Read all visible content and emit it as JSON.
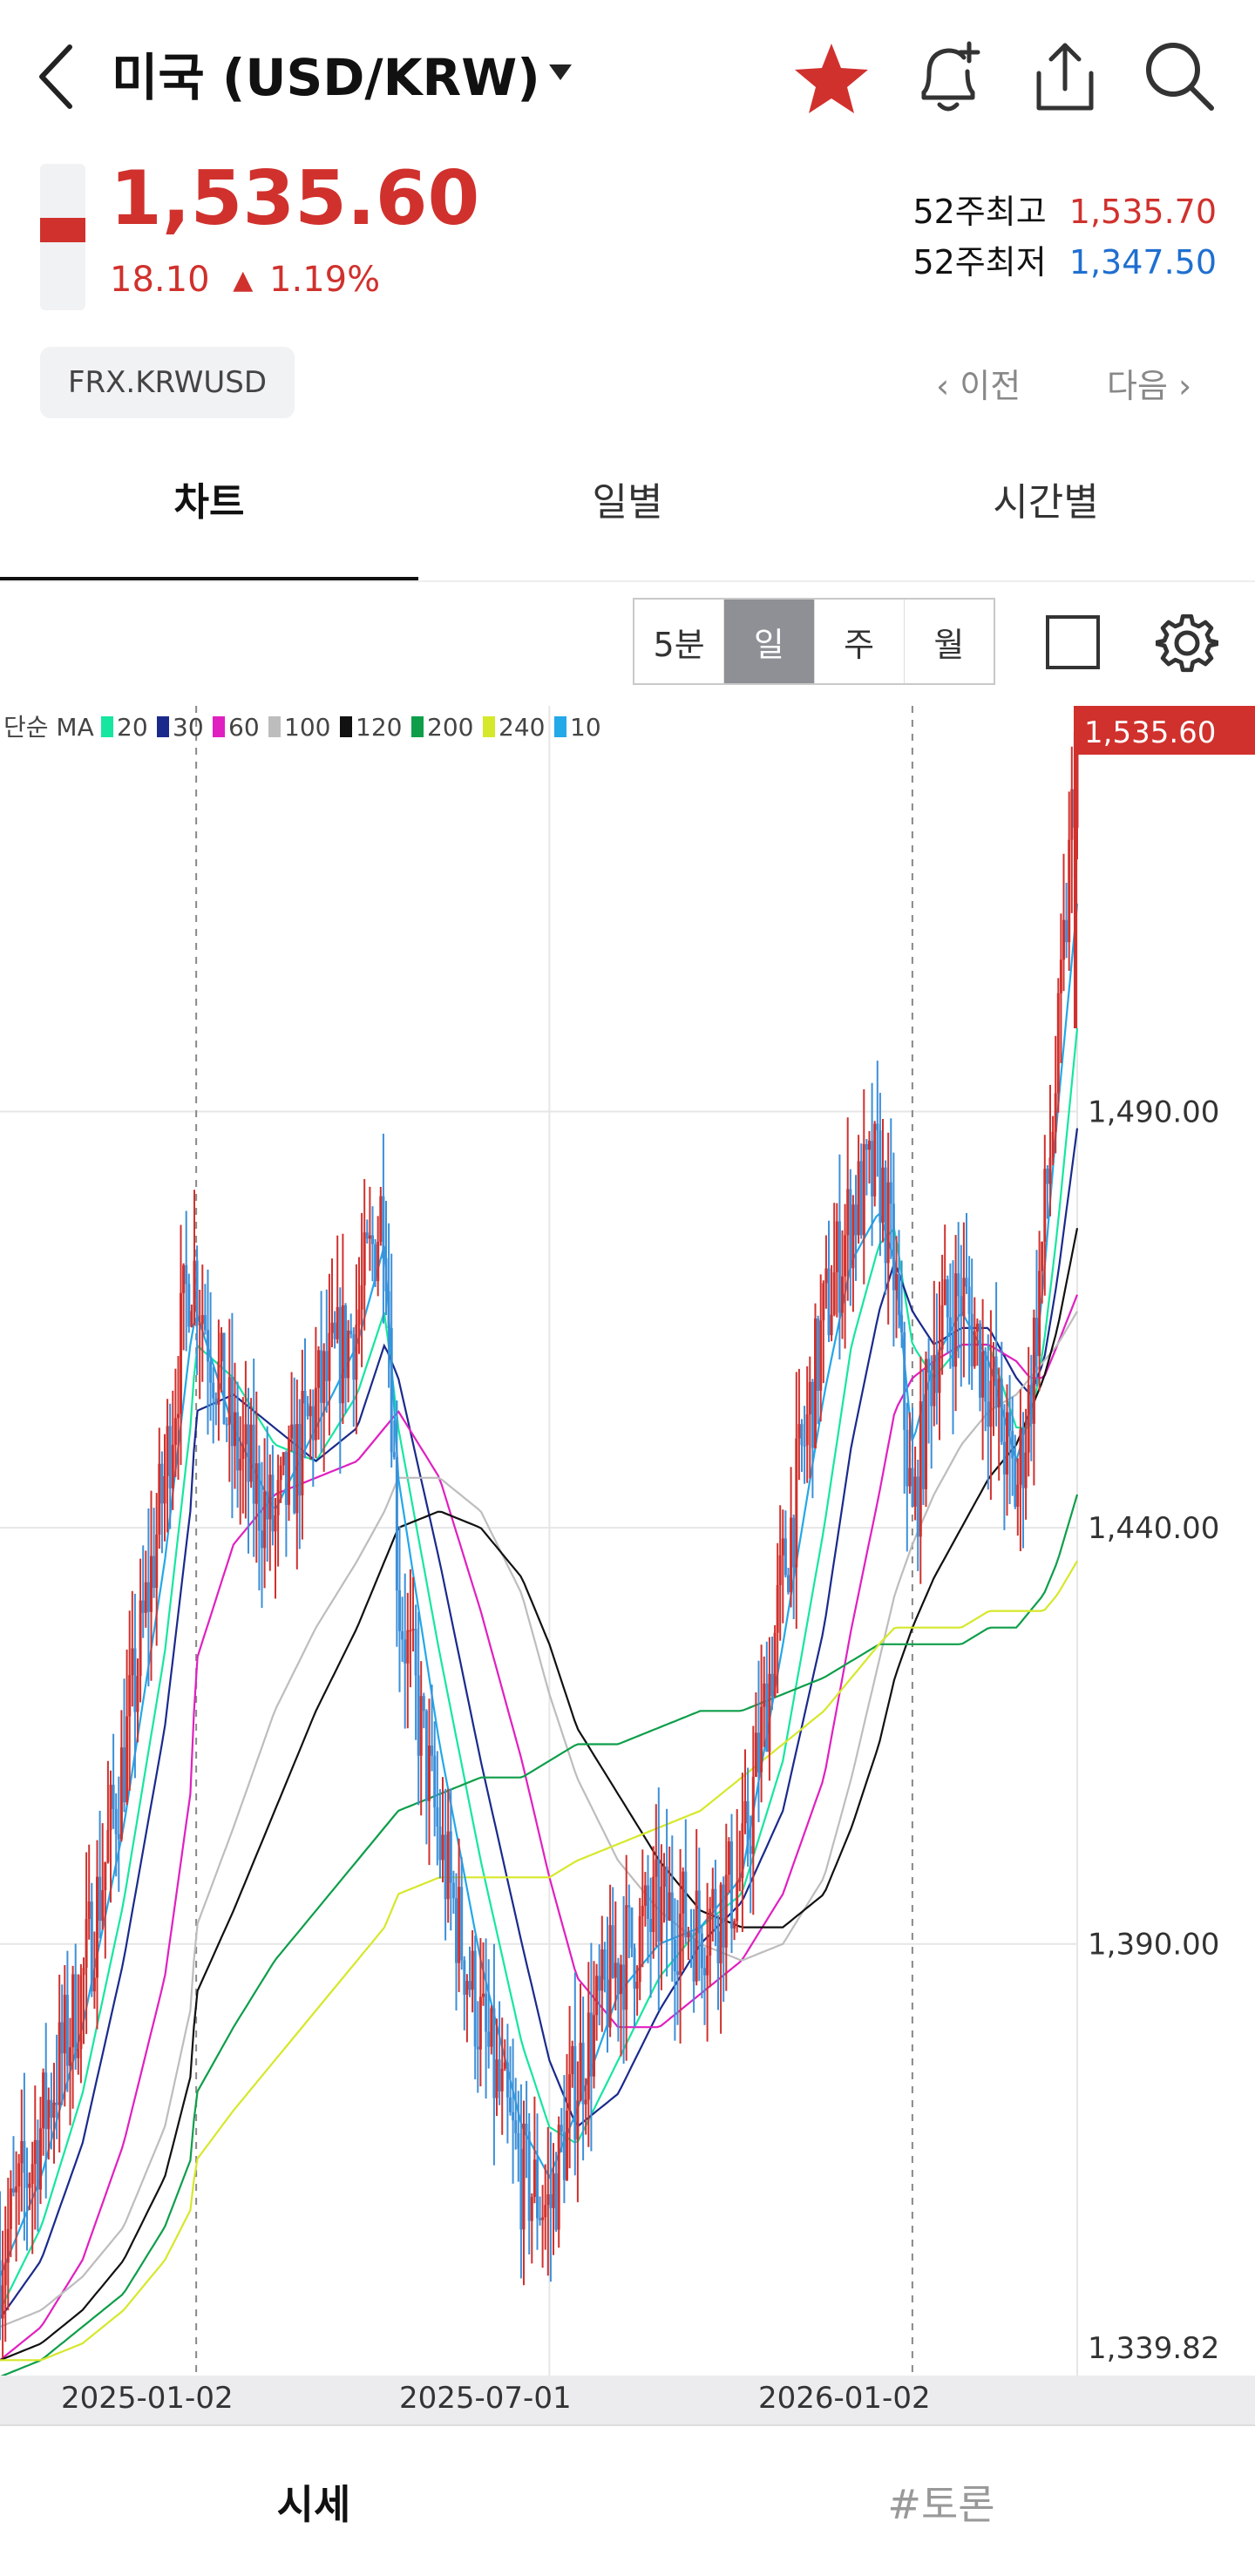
{
  "header": {
    "title": "미국 (USD/KRW)"
  },
  "quote": {
    "price": "1,535.60",
    "change": "18.10",
    "change_pct": "1.19%",
    "high52_label": "52주최고",
    "high52_value": "1,535.70",
    "low52_label": "52주최저",
    "low52_value": "1,347.50",
    "code": "FRX.KRWUSD",
    "prev": "이전",
    "next": "다음"
  },
  "tabs": [
    "차트",
    "일별",
    "시간별"
  ],
  "periods": [
    "5분",
    "일",
    "주",
    "월"
  ],
  "active_period": "일",
  "legend": {
    "prefix": "단순 MA",
    "items": [
      {
        "label": "20",
        "color": "#16e6a0"
      },
      {
        "label": "30",
        "color": "#1a2a8c"
      },
      {
        "label": "60",
        "color": "#e020c0"
      },
      {
        "label": "100",
        "color": "#bdbdbd"
      },
      {
        "label": "120",
        "color": "#111111"
      },
      {
        "label": "200",
        "color": "#0e9e4a"
      },
      {
        "label": "240",
        "color": "#d6e82a"
      },
      {
        "label": "10",
        "color": "#23a8e8"
      }
    ]
  },
  "colors": {
    "up": "#d0312d",
    "down": "#3d8fd8",
    "price_tag": "#d0312d"
  },
  "chart_data": {
    "type": "candlestick",
    "ylim": [
      1339.82,
      1535.6
    ],
    "yticks": [
      "1,490.00",
      "1,440.00",
      "1,390.00",
      "1,339.82"
    ],
    "current_label": "1,535.60",
    "xticks": [
      "2025-01-02",
      "2025-07-01",
      "2026-01-02"
    ],
    "close_series": {
      "x": [
        "2024-09-24",
        "2024-10-15",
        "2024-11-05",
        "2024-11-26",
        "2024-12-17",
        "2024-12-30",
        "2025-01-02",
        "2025-01-21",
        "2025-02-11",
        "2025-03-04",
        "2025-03-25",
        "2025-04-08",
        "2025-04-15",
        "2025-05-06",
        "2025-05-27",
        "2025-06-17",
        "2025-07-01",
        "2025-07-15",
        "2025-08-05",
        "2025-08-26",
        "2025-09-16",
        "2025-10-07",
        "2025-10-28",
        "2025-11-18",
        "2025-12-02",
        "2025-12-16",
        "2025-12-24",
        "2026-01-02",
        "2026-01-13",
        "2026-01-27",
        "2026-02-10",
        "2026-02-24",
        "2026-03-03",
        "2026-03-10",
        "2026-03-17",
        "2026-03-27"
      ],
      "values": [
        1352,
        1368,
        1385,
        1412,
        1446,
        1472,
        1470,
        1450,
        1440,
        1455,
        1465,
        1480,
        1432,
        1402,
        1380,
        1362,
        1358,
        1374,
        1388,
        1394,
        1392,
        1398,
        1434,
        1465,
        1478,
        1483,
        1470,
        1440,
        1462,
        1468,
        1458,
        1444,
        1456,
        1476,
        1496,
        1535.6
      ]
    },
    "moving_averages": [
      {
        "name": "20",
        "values": [
          1346,
          1356,
          1372,
          1395,
          1425,
          1452,
          1462,
          1458,
          1450,
          1448,
          1456,
          1466,
          1452,
          1425,
          1400,
          1378,
          1368,
          1366,
          1376,
          1386,
          1392,
          1396,
          1412,
          1440,
          1462,
          1474,
          1476,
          1462,
          1458,
          1462,
          1462,
          1452,
          1452,
          1462,
          1476,
          1500
        ]
      },
      {
        "name": "30",
        "values": [
          1345,
          1352,
          1366,
          1388,
          1416,
          1442,
          1454,
          1456,
          1452,
          1448,
          1452,
          1462,
          1458,
          1436,
          1412,
          1390,
          1376,
          1368,
          1372,
          1382,
          1390,
          1395,
          1406,
          1428,
          1450,
          1466,
          1472,
          1466,
          1462,
          1464,
          1464,
          1458,
          1456,
          1460,
          1470,
          1488
        ]
      },
      {
        "name": "60",
        "values": [
          1340,
          1344,
          1352,
          1366,
          1386,
          1408,
          1424,
          1438,
          1444,
          1446,
          1448,
          1452,
          1454,
          1446,
          1430,
          1412,
          1398,
          1386,
          1380,
          1380,
          1384,
          1388,
          1396,
          1410,
          1428,
          1444,
          1454,
          1458,
          1460,
          1462,
          1462,
          1460,
          1458,
          1458,
          1462,
          1468
        ]
      },
      {
        "name": "100",
        "values": [
          1344,
          1346,
          1350,
          1356,
          1368,
          1382,
          1392,
          1404,
          1418,
          1428,
          1436,
          1442,
          1446,
          1446,
          1442,
          1432,
          1420,
          1410,
          1400,
          1394,
          1390,
          1388,
          1390,
          1398,
          1410,
          1424,
          1432,
          1438,
          1444,
          1450,
          1454,
          1456,
          1458,
          1460,
          1462,
          1466
        ]
      },
      {
        "name": "120",
        "values": [
          1340,
          1342,
          1346,
          1352,
          1362,
          1374,
          1384,
          1394,
          1406,
          1418,
          1428,
          1436,
          1440,
          1442,
          1440,
          1434,
          1426,
          1416,
          1408,
          1400,
          1394,
          1392,
          1392,
          1396,
          1404,
          1414,
          1422,
          1428,
          1434,
          1440,
          1446,
          1450,
          1454,
          1458,
          1464,
          1476
        ]
      },
      {
        "name": "200",
        "values": [
          1338,
          1340,
          1344,
          1348,
          1356,
          1364,
          1372,
          1380,
          1388,
          1394,
          1400,
          1404,
          1406,
          1408,
          1410,
          1410,
          1412,
          1414,
          1414,
          1416,
          1418,
          1418,
          1420,
          1422,
          1424,
          1426,
          1426,
          1426,
          1426,
          1426,
          1428,
          1428,
          1430,
          1432,
          1436,
          1444
        ]
      },
      {
        "name": "240",
        "values": [
          1340,
          1340,
          1342,
          1346,
          1352,
          1358,
          1364,
          1370,
          1376,
          1382,
          1388,
          1392,
          1396,
          1398,
          1398,
          1398,
          1398,
          1400,
          1402,
          1404,
          1406,
          1410,
          1414,
          1418,
          1422,
          1426,
          1428,
          1428,
          1428,
          1428,
          1430,
          1430,
          1430,
          1430,
          1432,
          1436
        ]
      },
      {
        "name": "10",
        "values": [
          1350,
          1362,
          1380,
          1404,
          1436,
          1462,
          1466,
          1452,
          1442,
          1452,
          1462,
          1474,
          1446,
          1414,
          1388,
          1368,
          1362,
          1370,
          1384,
          1390,
          1392,
          1398,
          1426,
          1456,
          1472,
          1478,
          1472,
          1450,
          1460,
          1466,
          1460,
          1448,
          1454,
          1470,
          1490,
          1515
        ]
      }
    ]
  },
  "bottom_tabs": [
    "시세",
    "#토론"
  ]
}
